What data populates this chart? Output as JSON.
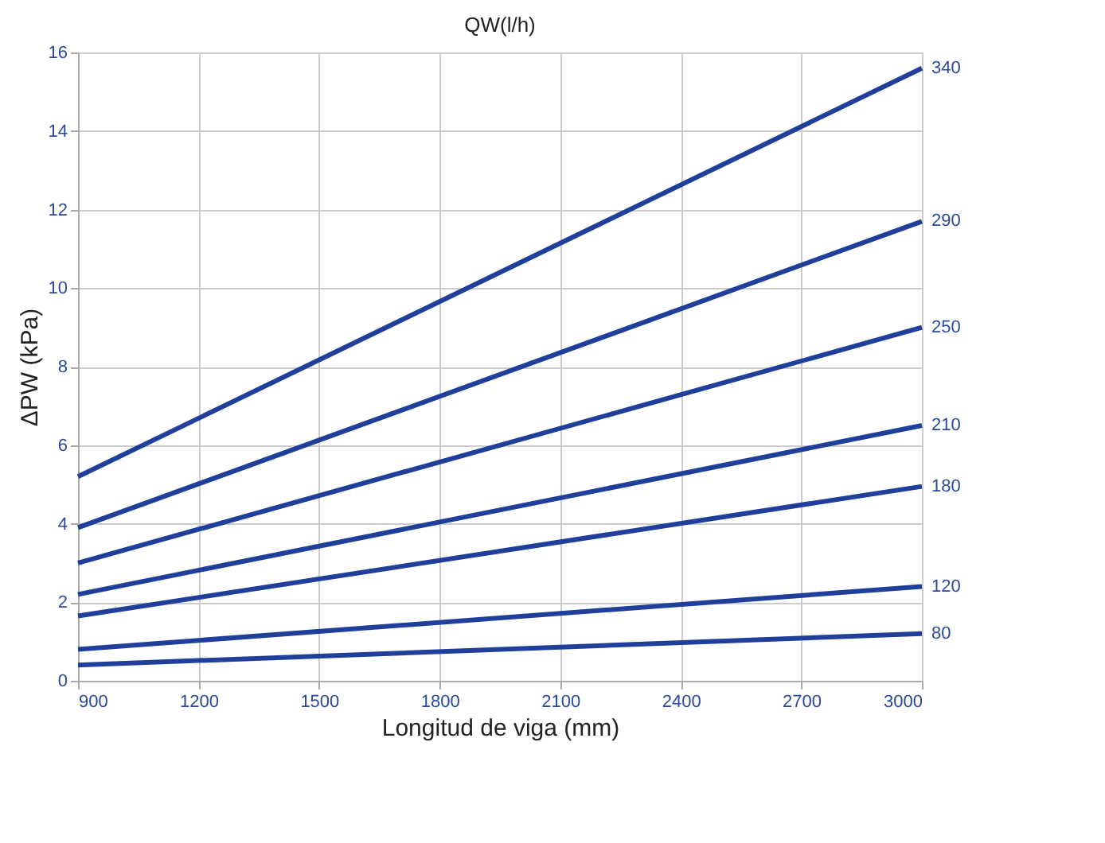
{
  "chart_data": {
    "type": "line",
    "title": "QW(l/h)",
    "xlabel": "Longitud de viga (mm)",
    "ylabel": "ΔPW (kPa)",
    "x": [
      900,
      3000
    ],
    "series": [
      {
        "name": "340",
        "color": "#1f3f9a",
        "values": [
          5.2,
          15.6
        ]
      },
      {
        "name": "290",
        "color": "#1f3f9a",
        "values": [
          3.9,
          11.7
        ]
      },
      {
        "name": "250",
        "color": "#1f3f9a",
        "values": [
          3.0,
          9.0
        ]
      },
      {
        "name": "210",
        "color": "#1f3f9a",
        "values": [
          2.2,
          6.5
        ]
      },
      {
        "name": "180",
        "color": "#1f3f9a",
        "values": [
          1.65,
          4.95
        ]
      },
      {
        "name": "120",
        "color": "#1f3f9a",
        "values": [
          0.8,
          2.4
        ]
      },
      {
        "name": "80",
        "color": "#1f3f9a",
        "values": [
          0.4,
          1.2
        ]
      }
    ],
    "xlim": [
      900,
      3000
    ],
    "xticks": [
      900,
      1200,
      1500,
      1800,
      2100,
      2400,
      2700,
      3000
    ],
    "ylim": [
      0,
      16
    ],
    "yticks": [
      0,
      2,
      4,
      6,
      8,
      10,
      12,
      14,
      16
    ],
    "grid": true,
    "legend": false,
    "marker": "none",
    "line_style": "solid"
  }
}
